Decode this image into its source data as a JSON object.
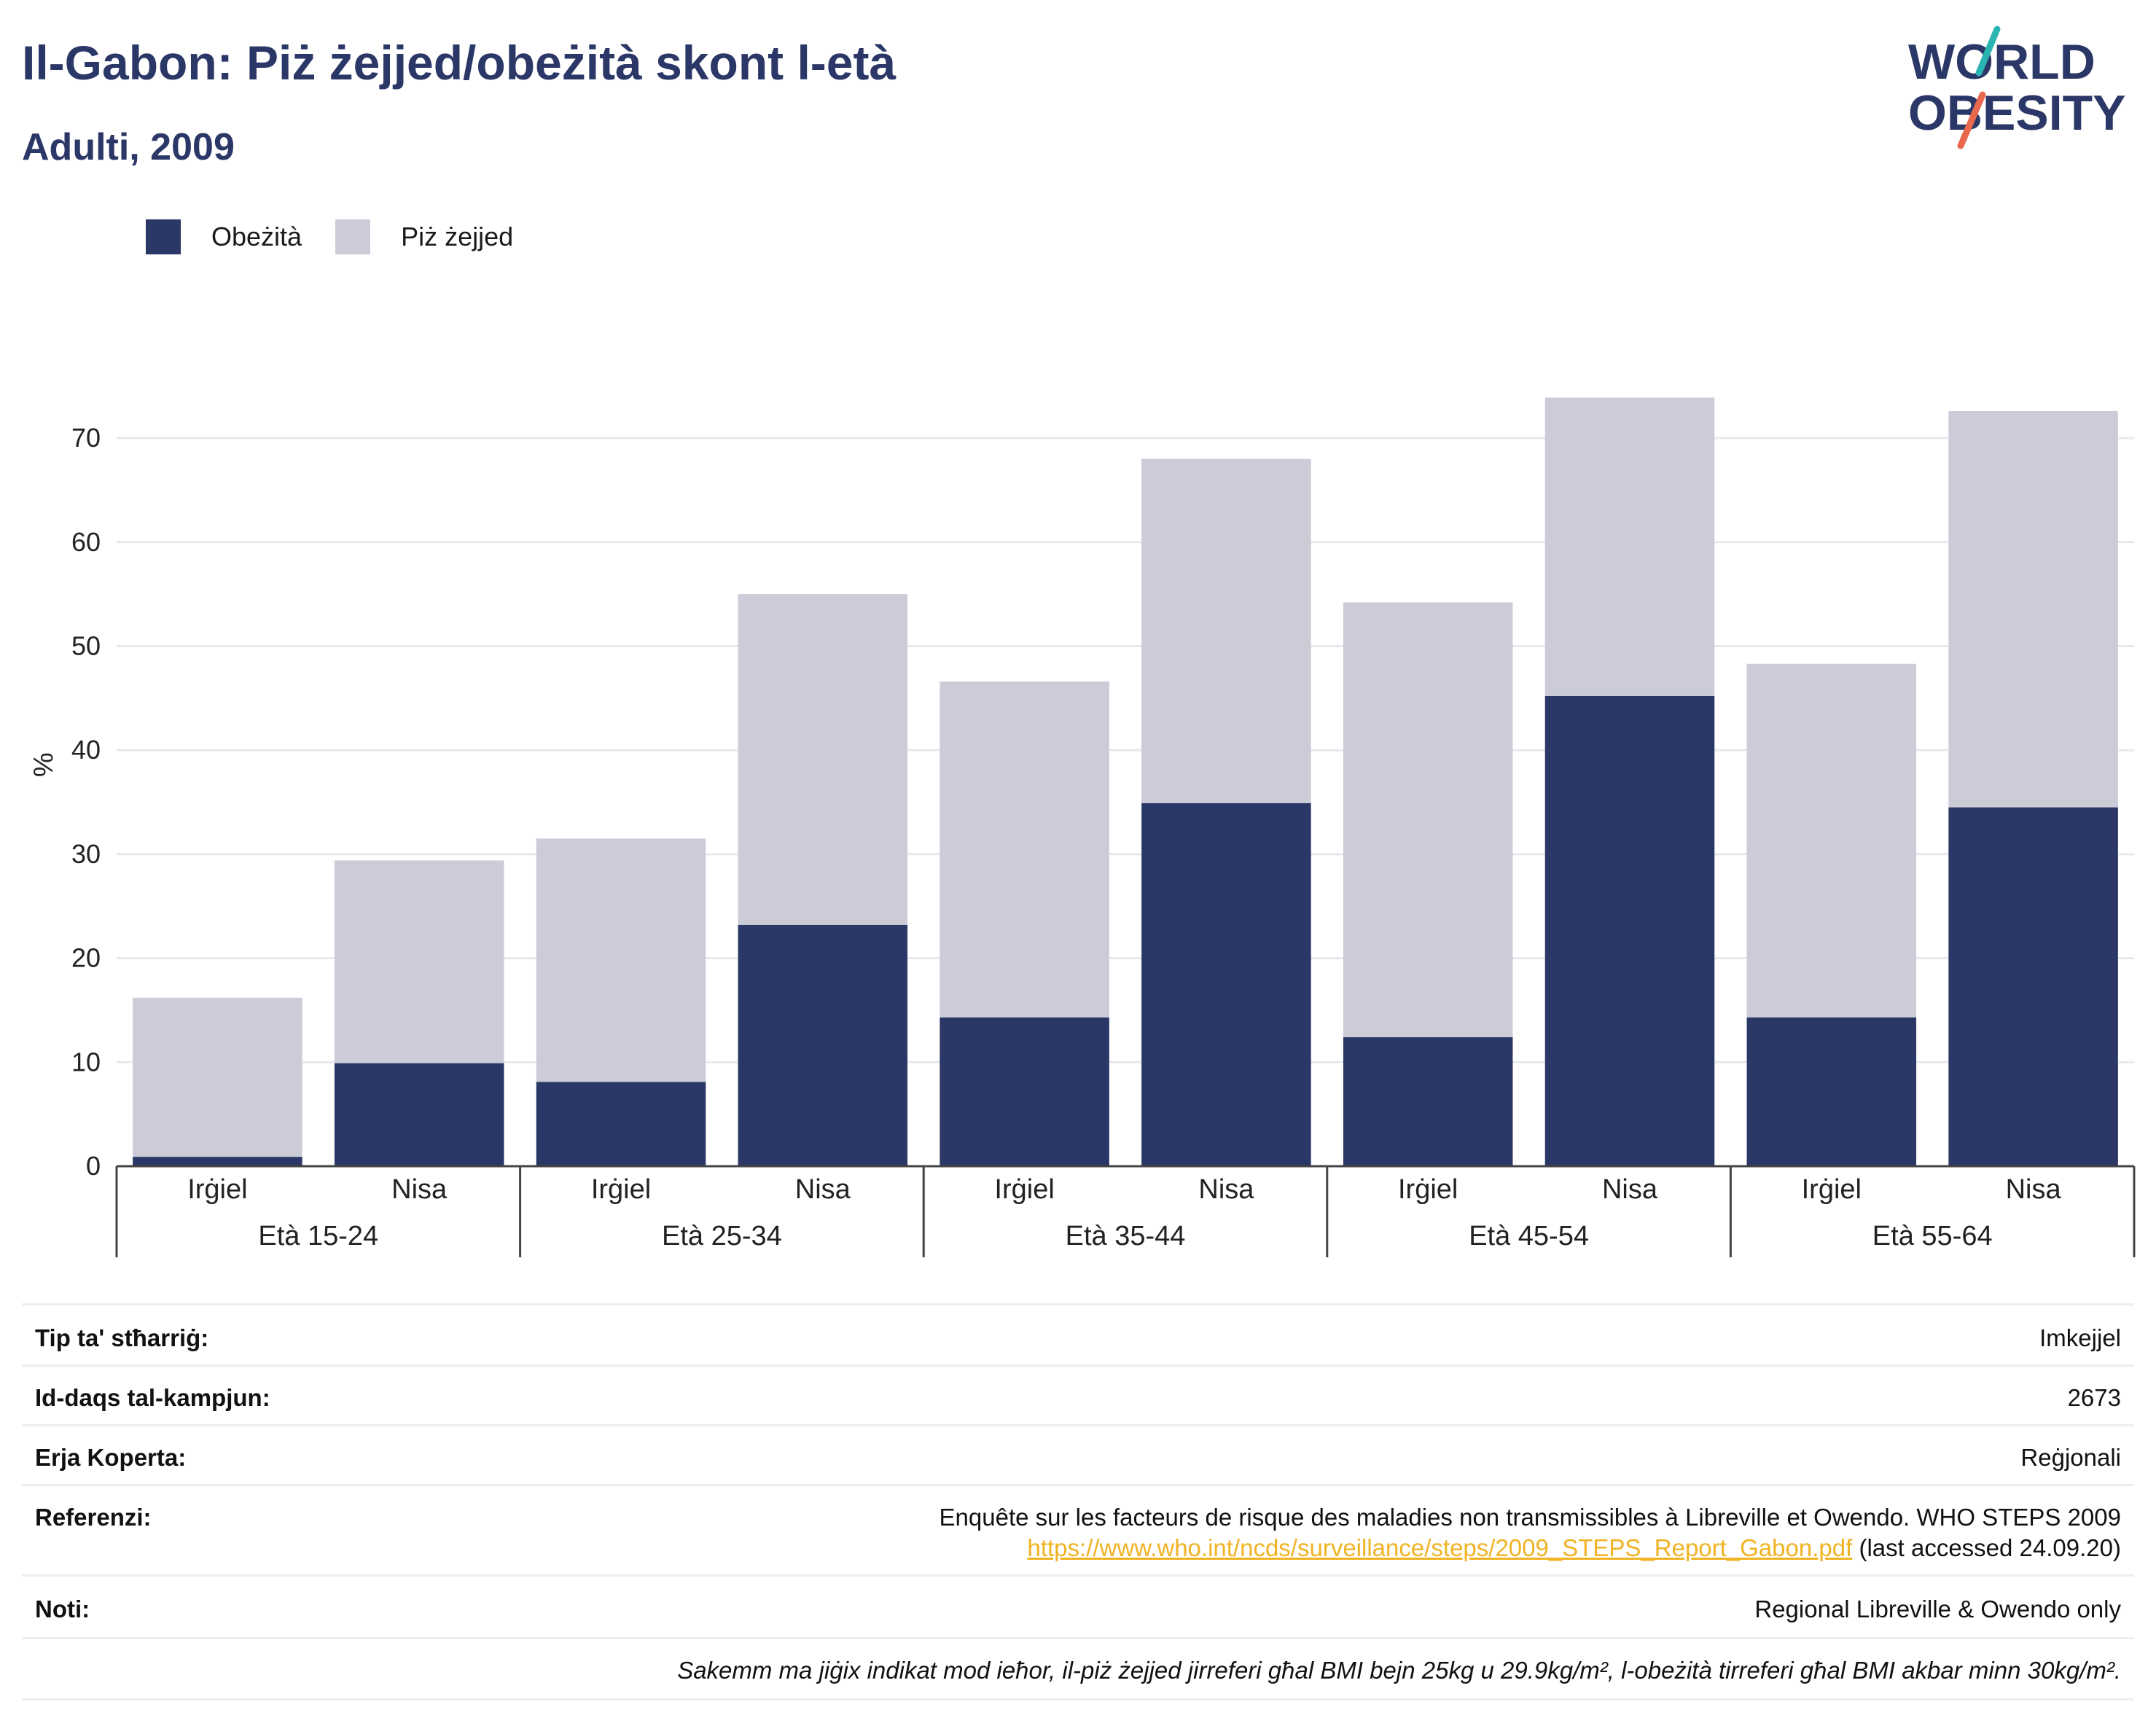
{
  "header": {
    "title": "Il-Gabon: Piż żejjed/obeżità skont l-età",
    "subtitle": "Adulti, 2009"
  },
  "logo": {
    "line1": "WORLD",
    "line2": "OBESITY"
  },
  "legend": {
    "items": [
      {
        "label": "Obeżità",
        "color": "#2b3766"
      },
      {
        "label": "Piż żejjed",
        "color": "#cbccd8"
      }
    ]
  },
  "chart_data": {
    "type": "bar",
    "stacked": true,
    "ylabel": "%",
    "ylim": [
      0,
      75
    ],
    "yticks": [
      0,
      10,
      20,
      30,
      40,
      50,
      60,
      70
    ],
    "grid": true,
    "legend_position": "top-left",
    "groups": [
      "Età 15-24",
      "Età 25-34",
      "Età 35-44",
      "Età 45-54",
      "Età 55-64"
    ],
    "categories": [
      "Irġiel",
      "Nisa",
      "Irġiel",
      "Nisa",
      "Irġiel",
      "Nisa",
      "Irġiel",
      "Nisa",
      "Irġiel",
      "Nisa"
    ],
    "series": [
      {
        "name": "Obeżità",
        "color": "#2b3766",
        "values": [
          0.9,
          9.9,
          8.1,
          23.2,
          14.3,
          34.9,
          12.4,
          45.2,
          14.3,
          34.5
        ]
      },
      {
        "name": "Piż żejjed",
        "color": "#cbccd8",
        "values": [
          15.3,
          19.5,
          23.4,
          31.8,
          32.3,
          33.1,
          41.8,
          28.7,
          34.0,
          38.1
        ]
      }
    ]
  },
  "info": {
    "survey_type_label": "Tip ta' stħarriġ:",
    "survey_type_value": "Imkejjel",
    "sample_size_label": "Id-daqs tal-kampjun:",
    "sample_size_value": "2673",
    "area_label": "Erja Koperta:",
    "area_value": "Reġjonali",
    "references_label": "Referenzi:",
    "references_text": "Enquête sur les facteurs de risque des maladies non transmissibles à Libreville et Owendo. WHO STEPS 2009",
    "references_link": "https://www.who.int/ncds/surveillance/steps/2009_STEPS_Report_Gabon.pdf",
    "references_accessed": " (last accessed 24.09.20)",
    "notes_label": "Noti:",
    "notes_value": "Regional Libreville & Owendo only",
    "footnote": "Sakemm ma jiġix indikat mod ieħor, il-piż żejjed jirreferi għal BMI bejn 25kg u 29.9kg/m², l-obeżità tirreferi għal BMI akbar minn 30kg/m²."
  }
}
